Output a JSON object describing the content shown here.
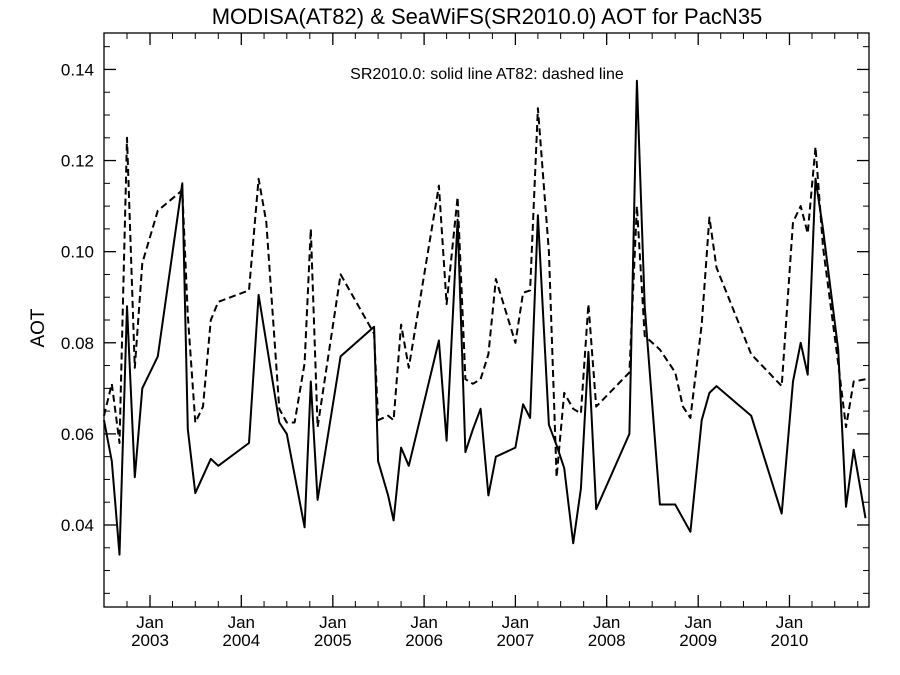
{
  "chart_data": {
    "type": "line",
    "title": "MODISA(AT82) & SeaWiFS(SR2010.0)  AOT for PacN35",
    "ylabel": "AOT",
    "xlabel": "",
    "annotation": "SR2010.0: solid line   AT82: dashed line",
    "xlim": [
      "2002-07-01",
      "2010-11-15"
    ],
    "ylim": [
      0.022,
      0.148
    ],
    "yticks": [
      "0.04",
      "0.06",
      "0.08",
      "0.10",
      "0.12",
      "0.14"
    ],
    "yticks_values": [
      0.04,
      0.06,
      0.08,
      0.1,
      0.12,
      0.14
    ],
    "xticks": [
      {
        "date": "2003-01-01",
        "month": "Jan",
        "year": "2003"
      },
      {
        "date": "2004-01-01",
        "month": "Jan",
        "year": "2004"
      },
      {
        "date": "2005-01-01",
        "month": "Jan",
        "year": "2005"
      },
      {
        "date": "2006-01-01",
        "month": "Jan",
        "year": "2006"
      },
      {
        "date": "2007-01-01",
        "month": "Jan",
        "year": "2007"
      },
      {
        "date": "2008-01-01",
        "month": "Jan",
        "year": "2008"
      },
      {
        "date": "2009-01-01",
        "month": "Jan",
        "year": "2009"
      },
      {
        "date": "2010-01-01",
        "month": "Jan",
        "year": "2010"
      }
    ],
    "grid": false,
    "series": [
      {
        "name": "SR2010.0",
        "style": "solid",
        "color": "#000000",
        "points": [
          [
            "2002-07-01",
            0.063
          ],
          [
            "2002-08-01",
            0.054
          ],
          [
            "2002-09-01",
            0.0335
          ],
          [
            "2002-10-01",
            0.088
          ],
          [
            "2002-11-01",
            0.0505
          ],
          [
            "2002-12-01",
            0.07
          ],
          [
            "2003-02-01",
            0.077
          ],
          [
            "2003-05-10",
            0.115
          ],
          [
            "2003-06-01",
            0.061
          ],
          [
            "2003-07-01",
            0.047
          ],
          [
            "2003-09-01",
            0.0545
          ],
          [
            "2003-10-01",
            0.053
          ],
          [
            "2004-02-01",
            0.058
          ],
          [
            "2004-03-10",
            0.0905
          ],
          [
            "2004-06-01",
            0.0625
          ],
          [
            "2004-07-01",
            0.06
          ],
          [
            "2004-09-10",
            0.0395
          ],
          [
            "2004-10-05",
            0.0715
          ],
          [
            "2004-11-01",
            0.0455
          ],
          [
            "2005-02-01",
            0.077
          ],
          [
            "2005-06-15",
            0.0835
          ],
          [
            "2005-07-01",
            0.054
          ],
          [
            "2005-08-10",
            0.0465
          ],
          [
            "2005-09-01",
            0.041
          ],
          [
            "2005-10-01",
            0.057
          ],
          [
            "2005-11-01",
            0.053
          ],
          [
            "2006-03-01",
            0.0805
          ],
          [
            "2006-04-01",
            0.0585
          ],
          [
            "2006-05-15",
            0.107
          ],
          [
            "2006-06-15",
            0.056
          ],
          [
            "2006-07-15",
            0.061
          ],
          [
            "2006-08-15",
            0.0655
          ],
          [
            "2006-09-15",
            0.0465
          ],
          [
            "2006-10-15",
            0.055
          ],
          [
            "2007-01-01",
            0.057
          ],
          [
            "2007-02-01",
            0.0665
          ],
          [
            "2007-03-01",
            0.0635
          ],
          [
            "2007-04-01",
            0.108
          ],
          [
            "2007-05-15",
            0.062
          ],
          [
            "2007-06-15",
            0.0575
          ],
          [
            "2007-07-15",
            0.0525
          ],
          [
            "2007-08-20",
            0.036
          ],
          [
            "2007-09-20",
            0.048
          ],
          [
            "2007-10-20",
            0.078
          ],
          [
            "2007-11-20",
            0.0435
          ],
          [
            "2008-04-01",
            0.06
          ],
          [
            "2008-05-01",
            0.1375
          ],
          [
            "2008-06-01",
            0.088
          ],
          [
            "2008-08-01",
            0.0445
          ],
          [
            "2008-10-01",
            0.0445
          ],
          [
            "2008-12-01",
            0.0385
          ],
          [
            "2009-01-15",
            0.063
          ],
          [
            "2009-02-15",
            0.069
          ],
          [
            "2009-03-15",
            0.0705
          ],
          [
            "2009-08-01",
            0.064
          ],
          [
            "2009-12-01",
            0.0425
          ],
          [
            "2010-01-15",
            0.0715
          ],
          [
            "2010-02-15",
            0.08
          ],
          [
            "2010-03-15",
            0.073
          ],
          [
            "2010-04-15",
            0.116
          ],
          [
            "2010-05-15",
            0.105
          ],
          [
            "2010-07-15",
            0.0785
          ],
          [
            "2010-08-15",
            0.044
          ],
          [
            "2010-09-15",
            0.0565
          ],
          [
            "2010-11-01",
            0.0415
          ]
        ]
      },
      {
        "name": "AT82",
        "style": "dashed",
        "color": "#000000",
        "points": [
          [
            "2002-07-01",
            0.064
          ],
          [
            "2002-08-01",
            0.071
          ],
          [
            "2002-09-01",
            0.058
          ],
          [
            "2002-10-01",
            0.125
          ],
          [
            "2002-11-01",
            0.0745
          ],
          [
            "2002-12-01",
            0.0975
          ],
          [
            "2003-02-01",
            0.109
          ],
          [
            "2003-05-10",
            0.1135
          ],
          [
            "2003-06-01",
            0.086
          ],
          [
            "2003-07-01",
            0.0625
          ],
          [
            "2003-08-01",
            0.066
          ],
          [
            "2003-09-01",
            0.085
          ],
          [
            "2003-10-01",
            0.089
          ],
          [
            "2004-02-01",
            0.0915
          ],
          [
            "2004-03-10",
            0.116
          ],
          [
            "2004-04-10",
            0.1065
          ],
          [
            "2004-06-01",
            0.0655
          ],
          [
            "2004-07-01",
            0.0625
          ],
          [
            "2004-08-01",
            0.0625
          ],
          [
            "2004-09-10",
            0.0755
          ],
          [
            "2004-10-05",
            0.105
          ],
          [
            "2004-11-01",
            0.0615
          ],
          [
            "2005-02-01",
            0.095
          ],
          [
            "2005-06-15",
            0.082
          ],
          [
            "2005-07-01",
            0.063
          ],
          [
            "2005-08-10",
            0.064
          ],
          [
            "2005-09-01",
            0.063
          ],
          [
            "2005-10-01",
            0.084
          ],
          [
            "2005-11-01",
            0.0745
          ],
          [
            "2006-03-01",
            0.1145
          ],
          [
            "2006-04-01",
            0.0885
          ],
          [
            "2006-05-15",
            0.112
          ],
          [
            "2006-06-15",
            0.072
          ],
          [
            "2006-07-15",
            0.071
          ],
          [
            "2006-08-15",
            0.072
          ],
          [
            "2006-09-15",
            0.0775
          ],
          [
            "2006-10-15",
            0.094
          ],
          [
            "2007-01-01",
            0.08
          ],
          [
            "2007-02-01",
            0.091
          ],
          [
            "2007-03-01",
            0.0915
          ],
          [
            "2007-04-01",
            0.1315
          ],
          [
            "2007-05-15",
            0.1
          ],
          [
            "2007-06-15",
            0.0505
          ],
          [
            "2007-07-15",
            0.069
          ],
          [
            "2007-08-20",
            0.0655
          ],
          [
            "2007-09-20",
            0.0645
          ],
          [
            "2007-10-20",
            0.0885
          ],
          [
            "2007-11-20",
            0.066
          ],
          [
            "2008-04-01",
            0.0735
          ],
          [
            "2008-05-01",
            0.11
          ],
          [
            "2008-06-01",
            0.0815
          ],
          [
            "2008-08-01",
            0.0785
          ],
          [
            "2008-10-01",
            0.0735
          ],
          [
            "2008-11-01",
            0.066
          ],
          [
            "2008-12-01",
            0.0635
          ],
          [
            "2009-01-15",
            0.084
          ],
          [
            "2009-02-15",
            0.1075
          ],
          [
            "2009-03-15",
            0.0965
          ],
          [
            "2009-08-01",
            0.0775
          ],
          [
            "2009-12-01",
            0.0705
          ],
          [
            "2010-01-15",
            0.1065
          ],
          [
            "2010-02-15",
            0.11
          ],
          [
            "2010-03-15",
            0.104
          ],
          [
            "2010-04-15",
            0.123
          ],
          [
            "2010-05-15",
            0.101
          ],
          [
            "2010-07-15",
            0.0755
          ],
          [
            "2010-08-15",
            0.0615
          ],
          [
            "2010-09-15",
            0.0715
          ],
          [
            "2010-11-01",
            0.072
          ]
        ]
      }
    ]
  }
}
